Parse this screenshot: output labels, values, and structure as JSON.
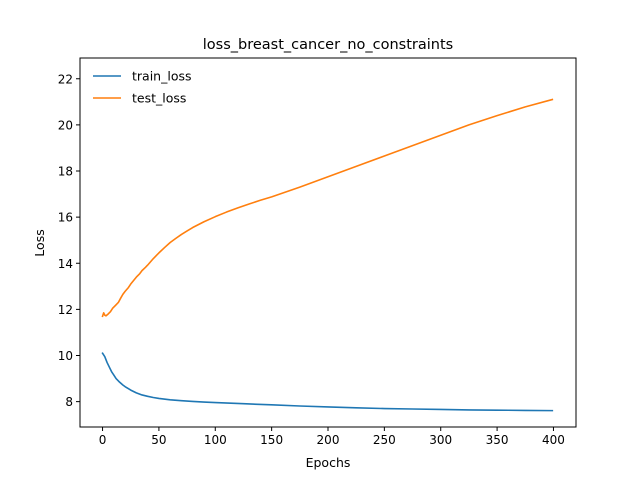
{
  "chart_data": {
    "type": "line",
    "title": "loss_breast_cancer_no_constraints",
    "xlabel": "Epochs",
    "ylabel": "Loss",
    "xlim": [
      -20,
      420
    ],
    "ylim": [
      6.9,
      22.9
    ],
    "xticks": [
      0,
      50,
      100,
      150,
      200,
      250,
      300,
      350,
      400
    ],
    "yticks": [
      8,
      10,
      12,
      14,
      16,
      18,
      20,
      22
    ],
    "grid": false,
    "legend": "top-left",
    "series": [
      {
        "name": "train_loss",
        "color": "#1f77b4",
        "x": [
          0,
          2,
          4,
          6,
          8,
          10,
          12,
          15,
          18,
          20,
          25,
          30,
          35,
          40,
          45,
          50,
          60,
          70,
          80,
          90,
          100,
          125,
          150,
          175,
          200,
          225,
          250,
          275,
          300,
          325,
          350,
          375,
          399
        ],
        "y": [
          10.1,
          9.95,
          9.7,
          9.5,
          9.3,
          9.15,
          9.0,
          8.85,
          8.72,
          8.65,
          8.5,
          8.38,
          8.29,
          8.23,
          8.18,
          8.14,
          8.08,
          8.04,
          8.01,
          7.98,
          7.96,
          7.91,
          7.86,
          7.81,
          7.77,
          7.73,
          7.7,
          7.68,
          7.66,
          7.64,
          7.63,
          7.62,
          7.61
        ]
      },
      {
        "name": "test_loss",
        "color": "#ff7f0e",
        "x": [
          0,
          1,
          2,
          3,
          5,
          7,
          9,
          10,
          12,
          14,
          16,
          18,
          20,
          23,
          25,
          28,
          30,
          33,
          35,
          38,
          40,
          45,
          50,
          55,
          60,
          65,
          70,
          75,
          80,
          90,
          100,
          110,
          120,
          130,
          140,
          150,
          175,
          200,
          225,
          250,
          275,
          300,
          325,
          350,
          375,
          399
        ],
        "y": [
          11.7,
          11.85,
          11.75,
          11.72,
          11.8,
          11.9,
          12.05,
          12.1,
          12.2,
          12.3,
          12.48,
          12.65,
          12.78,
          12.95,
          13.1,
          13.28,
          13.4,
          13.55,
          13.68,
          13.82,
          13.92,
          14.2,
          14.45,
          14.68,
          14.9,
          15.08,
          15.25,
          15.4,
          15.55,
          15.8,
          16.02,
          16.22,
          16.4,
          16.57,
          16.73,
          16.88,
          17.3,
          17.75,
          18.2,
          18.65,
          19.1,
          19.55,
          20.0,
          20.4,
          20.78,
          21.1
        ]
      }
    ]
  }
}
